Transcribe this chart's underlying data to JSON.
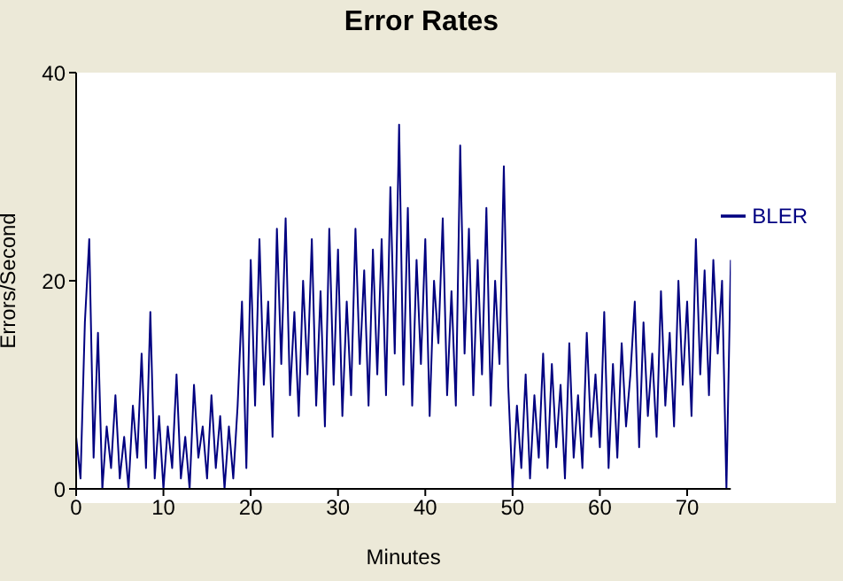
{
  "chart_data": {
    "type": "line",
    "title": "Error Rates",
    "xlabel": "Minutes",
    "ylabel": "Errors/Second",
    "xlim": [
      0,
      75
    ],
    "xticks": [
      0,
      10,
      20,
      30,
      40,
      50,
      60,
      70
    ],
    "ylim": [
      0,
      40
    ],
    "yticks": [
      0,
      20,
      40
    ],
    "grid": false,
    "legend": "top right",
    "marker": "none",
    "line_style": "solid",
    "x": [
      0,
      0.5,
      1,
      1.5,
      2,
      2.5,
      3,
      3.5,
      4,
      4.5,
      5,
      5.5,
      6,
      6.5,
      7,
      7.5,
      8,
      8.5,
      9,
      9.5,
      10,
      10.5,
      11,
      11.5,
      12,
      12.5,
      13,
      13.5,
      14,
      14.5,
      15,
      15.5,
      16,
      16.5,
      17,
      17.5,
      18,
      18.5,
      19,
      19.5,
      20,
      20.5,
      21,
      21.5,
      22,
      22.5,
      23,
      23.5,
      24,
      24.5,
      25,
      25.5,
      26,
      26.5,
      27,
      27.5,
      28,
      28.5,
      29,
      29.5,
      30,
      30.5,
      31,
      31.5,
      32,
      32.5,
      33,
      33.5,
      34,
      34.5,
      35,
      35.5,
      36,
      36.5,
      37,
      37.5,
      38,
      38.5,
      39,
      39.5,
      40,
      40.5,
      41,
      41.5,
      42,
      42.5,
      43,
      43.5,
      44,
      44.5,
      45,
      45.5,
      46,
      46.5,
      47,
      47.5,
      48,
      48.5,
      49,
      49.5,
      50,
      50.5,
      51,
      51.5,
      52,
      52.5,
      53,
      53.5,
      54,
      54.5,
      55,
      55.5,
      56,
      56.5,
      57,
      57.5,
      58,
      58.5,
      59,
      59.5,
      60,
      60.5,
      61,
      61.5,
      62,
      62.5,
      63,
      63.5,
      64,
      64.5,
      65,
      65.5,
      66,
      66.5,
      67,
      67.5,
      68,
      68.5,
      69,
      69.5,
      70,
      70.5,
      71,
      71.5,
      72,
      72.5,
      73,
      73.5,
      74,
      74.5,
      75
    ],
    "series": [
      {
        "name": "BLER",
        "color": "#000080",
        "values": [
          5,
          1,
          16,
          24,
          3,
          15,
          0,
          6,
          2,
          9,
          1,
          5,
          0,
          8,
          3,
          13,
          2,
          17,
          1,
          7,
          0,
          6,
          2,
          11,
          1,
          5,
          0,
          10,
          3,
          6,
          1,
          9,
          2,
          7,
          0,
          6,
          1,
          8,
          18,
          2,
          22,
          8,
          24,
          10,
          18,
          5,
          25,
          12,
          26,
          9,
          17,
          7,
          20,
          11,
          24,
          8,
          19,
          6,
          25,
          10,
          23,
          7,
          18,
          9,
          25,
          12,
          21,
          8,
          23,
          11,
          24,
          9,
          29,
          13,
          35,
          10,
          27,
          8,
          22,
          12,
          24,
          7,
          20,
          14,
          26,
          9,
          19,
          8,
          33,
          13,
          25,
          9,
          22,
          11,
          27,
          8,
          20,
          12,
          31,
          10,
          0,
          8,
          2,
          11,
          1,
          9,
          3,
          13,
          2,
          12,
          4,
          10,
          1,
          14,
          3,
          9,
          2,
          15,
          5,
          11,
          4,
          17,
          2,
          12,
          3,
          14,
          6,
          11,
          18,
          4,
          16,
          7,
          13,
          5,
          19,
          8,
          15,
          6,
          20,
          10,
          18,
          7,
          24,
          11,
          21,
          9,
          22,
          13,
          20,
          0,
          22
        ]
      }
    ]
  }
}
